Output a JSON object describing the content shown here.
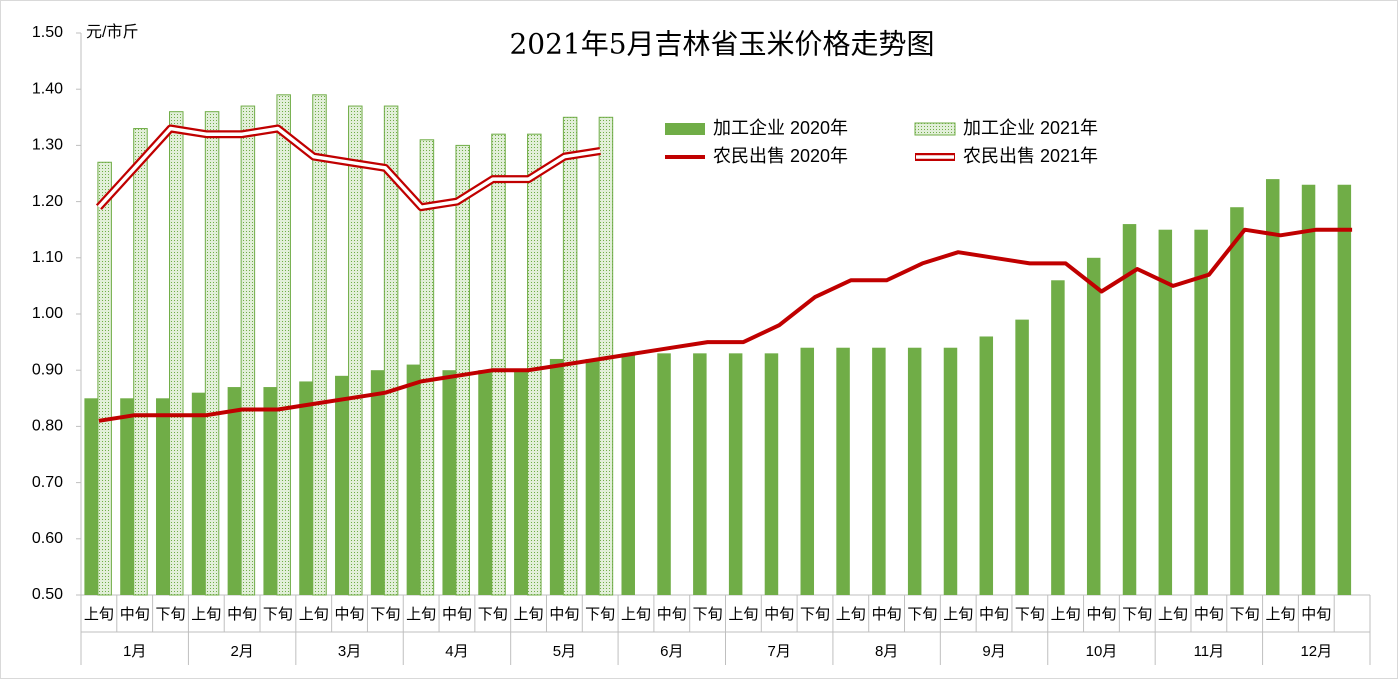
{
  "chart_data": {
    "type": "bar",
    "title": "2021年5月吉林省玉米价格走势图",
    "y_unit": "元/市斤",
    "categories": [
      [
        "1月",
        "上旬"
      ],
      [
        "1月",
        "中旬"
      ],
      [
        "1月",
        "下旬"
      ],
      [
        "2月",
        "上旬"
      ],
      [
        "2月",
        "中旬"
      ],
      [
        "2月",
        "下旬"
      ],
      [
        "3月",
        "上旬"
      ],
      [
        "3月",
        "中旬"
      ],
      [
        "3月",
        "下旬"
      ],
      [
        "4月",
        "上旬"
      ],
      [
        "4月",
        "中旬"
      ],
      [
        "4月",
        "下旬"
      ],
      [
        "5月",
        "上旬"
      ],
      [
        "5月",
        "中旬"
      ],
      [
        "5月",
        "下旬"
      ],
      [
        "6月",
        "上旬"
      ],
      [
        "6月",
        "中旬"
      ],
      [
        "6月",
        "下旬"
      ],
      [
        "7月",
        "上旬"
      ],
      [
        "7月",
        "中旬"
      ],
      [
        "7月",
        "下旬"
      ],
      [
        "8月",
        "上旬"
      ],
      [
        "8月",
        "中旬"
      ],
      [
        "8月",
        "下旬"
      ],
      [
        "9月",
        "上旬"
      ],
      [
        "9月",
        "中旬"
      ],
      [
        "9月",
        "下旬"
      ],
      [
        "10月",
        "上旬"
      ],
      [
        "10月",
        "中旬"
      ],
      [
        "10月",
        "下旬"
      ],
      [
        "11月",
        "上旬"
      ],
      [
        "11月",
        "中旬"
      ],
      [
        "11月",
        "下旬"
      ],
      [
        "12月",
        "上旬"
      ],
      [
        "12月",
        "中旬"
      ],
      [
        "12月",
        null
      ]
    ],
    "series": [
      {
        "name": "加工企业 2020年",
        "type": "bar",
        "color": "#70ad47",
        "style": "solid",
        "values": [
          0.85,
          0.85,
          0.85,
          0.86,
          0.87,
          0.87,
          0.88,
          0.89,
          0.9,
          0.91,
          0.9,
          0.9,
          0.9,
          0.92,
          0.92,
          0.93,
          0.93,
          0.93,
          0.93,
          0.93,
          0.94,
          0.94,
          0.94,
          0.94,
          0.94,
          0.96,
          0.99,
          1.06,
          1.1,
          1.16,
          1.15,
          1.15,
          1.19,
          1.24,
          1.23,
          1.23
        ]
      },
      {
        "name": "加工企业 2021年",
        "type": "bar",
        "color": "#70ad47",
        "style": "dotted",
        "values": [
          1.27,
          1.33,
          1.36,
          1.36,
          1.37,
          1.39,
          1.39,
          1.37,
          1.37,
          1.31,
          1.3,
          1.32,
          1.32,
          1.35,
          1.35,
          null,
          null,
          null,
          null,
          null,
          null,
          null,
          null,
          null,
          null,
          null,
          null,
          null,
          null,
          null,
          null,
          null,
          null,
          null,
          null,
          null
        ]
      },
      {
        "name": "农民出售 2020年",
        "type": "line",
        "color": "#c00000",
        "style": "solid",
        "values": [
          0.81,
          0.82,
          0.82,
          0.82,
          0.83,
          0.83,
          0.84,
          0.85,
          0.86,
          0.88,
          0.89,
          0.9,
          0.9,
          0.91,
          0.92,
          0.93,
          0.94,
          0.95,
          0.95,
          0.98,
          1.03,
          1.06,
          1.06,
          1.09,
          1.11,
          1.1,
          1.09,
          1.09,
          1.04,
          1.08,
          1.05,
          1.07,
          1.15,
          1.14,
          1.15,
          1.15
        ]
      },
      {
        "name": "农民出售 2021年",
        "type": "line",
        "color": "#c00000",
        "style": "hollow",
        "values": [
          1.19,
          1.26,
          1.33,
          1.32,
          1.32,
          1.33,
          1.28,
          1.27,
          1.26,
          1.19,
          1.2,
          1.24,
          1.24,
          1.28,
          1.29,
          null,
          null,
          null,
          null,
          null,
          null,
          null,
          null,
          null,
          null,
          null,
          null,
          null,
          null,
          null,
          null,
          null,
          null,
          null,
          null,
          null
        ]
      }
    ],
    "ylim": [
      0.5,
      1.5
    ],
    "yticks": [
      {
        "value": 0.5,
        "label": "0.50"
      },
      {
        "value": 0.6,
        "label": "0.60"
      },
      {
        "value": 0.7,
        "label": "0.70"
      },
      {
        "value": 0.8,
        "label": "0.80"
      },
      {
        "value": 0.9,
        "label": "0.90"
      },
      {
        "value": 1.0,
        "label": "1.00"
      },
      {
        "value": 1.1,
        "label": "1.10"
      },
      {
        "value": 1.2,
        "label": "1.20"
      },
      {
        "value": 1.3,
        "label": "1.30"
      },
      {
        "value": 1.4,
        "label": "1.40"
      },
      {
        "value": 1.5,
        "label": "1.50"
      }
    ],
    "grid": false
  }
}
